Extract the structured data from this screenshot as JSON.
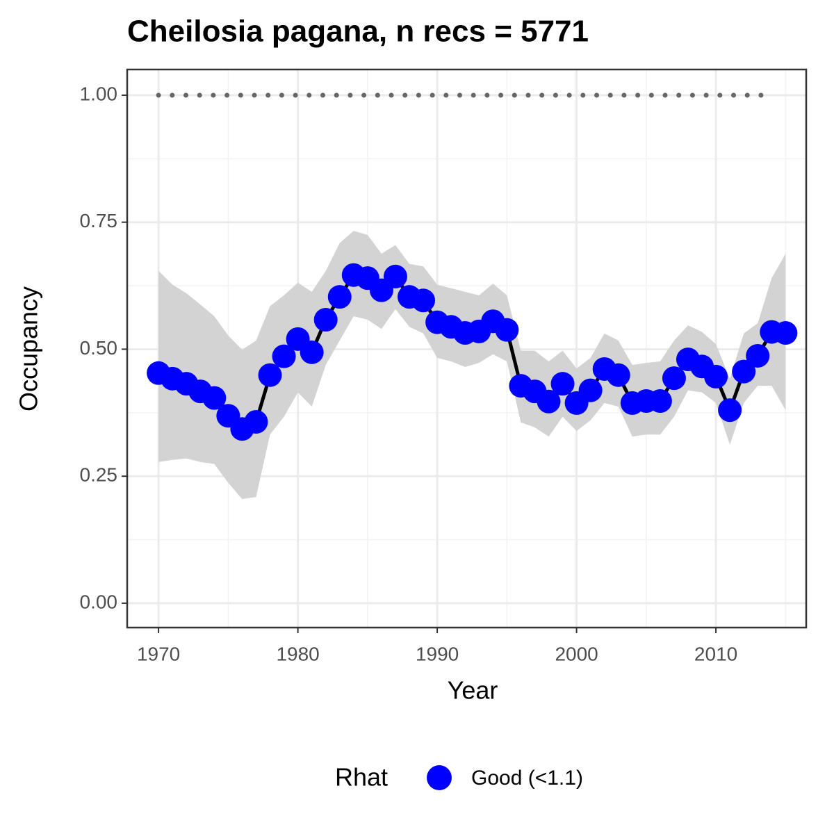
{
  "chart_data": {
    "type": "line",
    "title": "Cheilosia pagana, n recs = 5771",
    "x_label": "Year",
    "y_label": "Occupancy",
    "legend_title": "Rhat",
    "x": [
      1970,
      1971,
      1972,
      1973,
      1974,
      1975,
      1976,
      1977,
      1978,
      1979,
      1980,
      1981,
      1982,
      1983,
      1984,
      1985,
      1986,
      1987,
      1988,
      1989,
      1990,
      1991,
      1992,
      1993,
      1994,
      1995,
      1996,
      1997,
      1998,
      1999,
      2000,
      2001,
      2002,
      2003,
      2004,
      2005,
      2006,
      2007,
      2008,
      2009,
      2010,
      2011,
      2012,
      2013,
      2014,
      2015
    ],
    "series": [
      {
        "name": "Good (<1.1)",
        "color": "#0000ff",
        "line_color": "#000000",
        "values": [
          0.453,
          0.442,
          0.432,
          0.417,
          0.404,
          0.369,
          0.343,
          0.357,
          0.449,
          0.486,
          0.52,
          0.494,
          0.558,
          0.603,
          0.646,
          0.64,
          0.616,
          0.643,
          0.603,
          0.596,
          0.553,
          0.544,
          0.532,
          0.535,
          0.555,
          0.538,
          0.428,
          0.417,
          0.397,
          0.432,
          0.394,
          0.419,
          0.461,
          0.449,
          0.394,
          0.398,
          0.398,
          0.443,
          0.48,
          0.466,
          0.446,
          0.38,
          0.456,
          0.487,
          0.534,
          0.532
        ]
      }
    ],
    "band": {
      "color": "#d3d3d3",
      "upper": [
        0.654,
        0.627,
        0.61,
        0.588,
        0.565,
        0.527,
        0.499,
        0.517,
        0.585,
        0.606,
        0.631,
        0.613,
        0.654,
        0.709,
        0.733,
        0.725,
        0.688,
        0.705,
        0.668,
        0.663,
        0.627,
        0.62,
        0.613,
        0.606,
        0.629,
        0.606,
        0.497,
        0.497,
        0.476,
        0.497,
        0.462,
        0.483,
        0.531,
        0.517,
        0.469,
        0.473,
        0.476,
        0.517,
        0.547,
        0.534,
        0.51,
        0.442,
        0.531,
        0.551,
        0.64,
        0.688
      ],
      "lower": [
        0.278,
        0.282,
        0.285,
        0.278,
        0.274,
        0.237,
        0.205,
        0.209,
        0.332,
        0.367,
        0.415,
        0.387,
        0.469,
        0.517,
        0.565,
        0.558,
        0.54,
        0.579,
        0.544,
        0.531,
        0.483,
        0.476,
        0.465,
        0.473,
        0.49,
        0.476,
        0.356,
        0.346,
        0.328,
        0.367,
        0.339,
        0.36,
        0.394,
        0.387,
        0.328,
        0.332,
        0.332,
        0.367,
        0.419,
        0.415,
        0.394,
        0.312,
        0.394,
        0.428,
        0.428,
        0.38
      ]
    },
    "reference_line": {
      "x": [
        1970,
        2014
      ],
      "values": [
        1,
        1
      ],
      "color": "#666666"
    },
    "xlim": [
      1967.75,
      2016.48
    ],
    "ylim": [
      -0.048,
      1.0506
    ],
    "xticks": [
      1970,
      1980,
      1990,
      2000,
      2010
    ],
    "minor_xticks": [
      1975,
      1985,
      1995,
      2005,
      2015
    ],
    "yticks": [
      {
        "value": 0,
        "label": "0.00"
      },
      {
        "value": 0.25,
        "label": "0.25"
      },
      {
        "value": 0.5,
        "label": "0.50"
      },
      {
        "value": 0.75,
        "label": "0.75"
      },
      {
        "value": 1,
        "label": "1.00"
      }
    ],
    "minor_yticks": [
      0.125,
      0.375,
      0.625,
      0.875
    ],
    "grid": true
  }
}
